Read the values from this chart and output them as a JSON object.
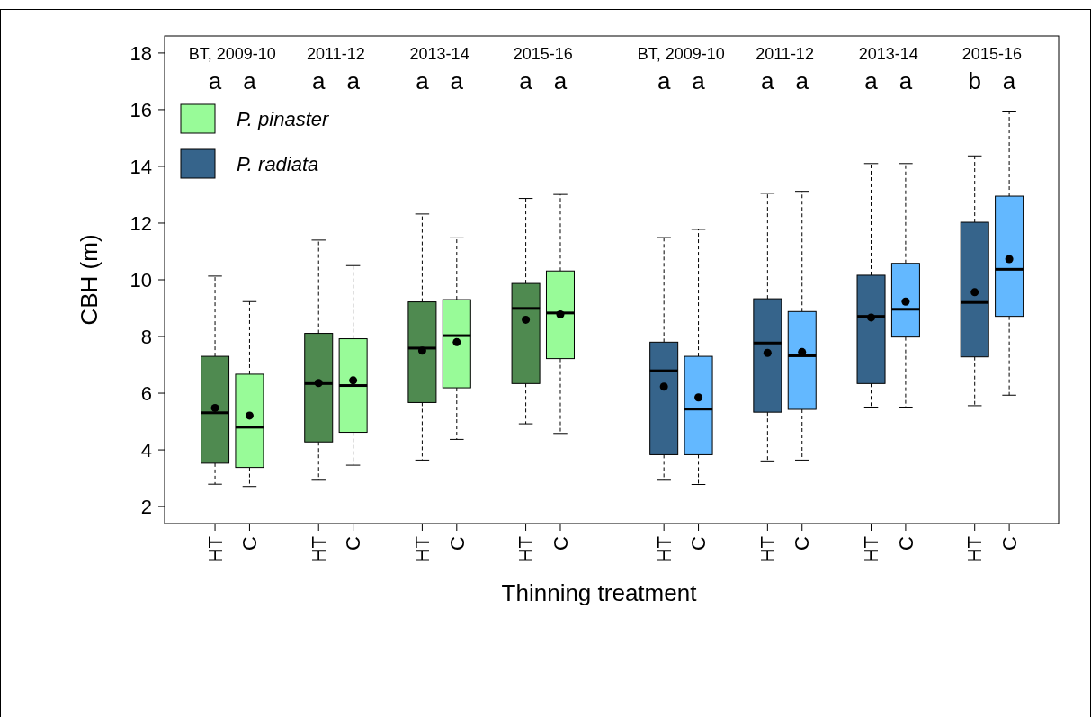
{
  "chart_data": {
    "type": "box",
    "xlabel": "Thinning treatment",
    "ylabel": "CBH (m)",
    "categories": [
      "HT",
      "C",
      "HT",
      "C",
      "HT",
      "C",
      "HT",
      "C",
      "HT",
      "C",
      "HT",
      "C",
      "HT",
      "C",
      "HT",
      "C"
    ],
    "ylim": [
      1.4,
      18.6
    ],
    "yticks": [
      2,
      4,
      6,
      8,
      10,
      12,
      14,
      16,
      18
    ],
    "grid": false,
    "legend": "top left",
    "annotations": [
      "BT, 2009-10",
      "2011-12",
      "2013-14",
      "2015-16",
      "BT, 2009-10",
      "2011-12",
      "2013-14",
      "2015-16",
      "a",
      "a",
      "a",
      "a",
      "a",
      "a",
      "a",
      "a",
      "a",
      "a",
      "a",
      "a",
      "a",
      "a",
      "b",
      "a"
    ],
    "series": [
      {
        "name": "P. pinaster",
        "color": "#98fb98",
        "colors": [
          "#4f8a50",
          "#98fb98",
          "#4f8a50",
          "#98fb98",
          "#4f8a50",
          "#98fb98",
          "#4f8a50",
          "#98fb98",
          null,
          null,
          null,
          null,
          null,
          null,
          null,
          null
        ],
        "boxes": [
          {
            "low": 2.79,
            "q1": 3.53,
            "median": 5.31,
            "q3": 7.3,
            "high": 10.13,
            "mean": 5.48
          },
          {
            "low": 2.71,
            "q1": 3.38,
            "median": 4.8,
            "q3": 6.67,
            "high": 9.23,
            "mean": 5.21
          },
          {
            "low": 2.93,
            "q1": 4.28,
            "median": 6.34,
            "q3": 8.11,
            "high": 11.4,
            "mean": 6.36
          },
          {
            "low": 3.46,
            "q1": 4.62,
            "median": 6.27,
            "q3": 7.92,
            "high": 10.5,
            "mean": 6.45
          },
          {
            "low": 3.64,
            "q1": 5.67,
            "median": 7.59,
            "q3": 9.22,
            "high": 12.32,
            "mean": 7.5
          },
          {
            "low": 4.37,
            "q1": 6.19,
            "median": 8.03,
            "q3": 9.3,
            "high": 11.48,
            "mean": 7.8
          },
          {
            "low": 4.92,
            "q1": 6.34,
            "median": 8.99,
            "q3": 9.87,
            "high": 12.87,
            "mean": 8.59
          },
          {
            "low": 4.58,
            "q1": 7.22,
            "median": 8.83,
            "q3": 10.31,
            "high": 13.01,
            "mean": 8.78
          },
          null,
          null,
          null,
          null,
          null,
          null,
          null,
          null
        ]
      },
      {
        "name": "P. radiata",
        "color": "#36648b",
        "colors": [
          null,
          null,
          null,
          null,
          null,
          null,
          null,
          null,
          "#36648b",
          "#63b8ff",
          "#36648b",
          "#63b8ff",
          "#36648b",
          "#63b8ff",
          "#36648b",
          "#63b8ff"
        ],
        "boxes": [
          null,
          null,
          null,
          null,
          null,
          null,
          null,
          null,
          {
            "low": 2.93,
            "q1": 3.83,
            "median": 6.79,
            "q3": 7.8,
            "high": 11.49,
            "mean": 6.23
          },
          {
            "low": 2.78,
            "q1": 3.83,
            "median": 5.44,
            "q3": 7.3,
            "high": 11.78,
            "mean": 5.85
          },
          {
            "low": 3.61,
            "q1": 5.33,
            "median": 7.77,
            "q3": 9.33,
            "high": 13.05,
            "mean": 7.42
          },
          {
            "low": 3.64,
            "q1": 5.43,
            "median": 7.32,
            "q3": 8.88,
            "high": 13.12,
            "mean": 7.45
          },
          {
            "low": 5.51,
            "q1": 6.34,
            "median": 8.71,
            "q3": 10.16,
            "high": 14.1,
            "mean": 8.67
          },
          {
            "low": 5.51,
            "q1": 7.98,
            "median": 8.96,
            "q3": 10.58,
            "high": 14.1,
            "mean": 9.23
          },
          {
            "low": 5.56,
            "q1": 7.28,
            "median": 9.2,
            "q3": 12.03,
            "high": 14.37,
            "mean": 9.56
          },
          {
            "low": 5.93,
            "q1": 8.71,
            "median": 10.37,
            "q3": 12.95,
            "high": 15.95,
            "mean": 10.73
          }
        ]
      }
    ]
  }
}
